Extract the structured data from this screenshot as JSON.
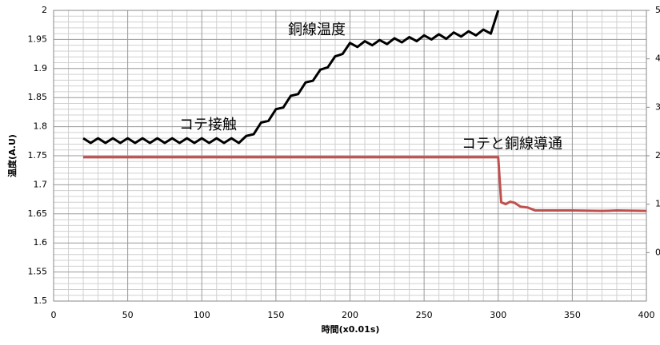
{
  "chart_data": {
    "type": "line",
    "x_label": "時間(x0.01s)",
    "y_label": "温度(A.U)",
    "annotations": [
      "銅線温度",
      "コテ接触",
      "コテと銅線導通"
    ],
    "xlim": [
      0,
      400
    ],
    "xticks": [
      0,
      50,
      100,
      150,
      200,
      250,
      300,
      350,
      400
    ],
    "ylim": [
      1.5,
      2
    ],
    "yticks": [
      1.5,
      1.55,
      1.6,
      1.65,
      1.7,
      1.75,
      1.8,
      1.85,
      1.9,
      1.95,
      2
    ],
    "y2lim": [
      -1,
      5
    ],
    "y2ticks": [
      0,
      1,
      2,
      3,
      4,
      5
    ],
    "grid": true,
    "series": [
      {
        "color": "#000000",
        "x": [
          20,
          25,
          30,
          35,
          40,
          45,
          50,
          55,
          60,
          65,
          70,
          75,
          80,
          85,
          90,
          95,
          100,
          105,
          110,
          115,
          120,
          125,
          130,
          135,
          140,
          145,
          150,
          155,
          160,
          165,
          170,
          175,
          180,
          185,
          190,
          195,
          200,
          205,
          210,
          215,
          220,
          225,
          230,
          235,
          240,
          245,
          250,
          255,
          260,
          265,
          270,
          275,
          280,
          285,
          290,
          295,
          300
        ],
        "values": [
          1.78,
          1.772,
          1.78,
          1.772,
          1.78,
          1.772,
          1.78,
          1.772,
          1.78,
          1.772,
          1.78,
          1.772,
          1.78,
          1.772,
          1.78,
          1.772,
          1.78,
          1.772,
          1.78,
          1.772,
          1.78,
          1.772,
          1.784,
          1.787,
          1.807,
          1.81,
          1.83,
          1.833,
          1.853,
          1.856,
          1.876,
          1.879,
          1.898,
          1.902,
          1.921,
          1.925,
          1.944,
          1.937,
          1.947,
          1.94,
          1.949,
          1.942,
          1.952,
          1.945,
          1.954,
          1.947,
          1.957,
          1.95,
          1.959,
          1.951,
          1.962,
          1.955,
          1.964,
          1.957,
          1.967,
          1.96,
          2.0
        ]
      },
      {
        "color": "#c0504d",
        "axis": "y2",
        "x": [
          20,
          300,
          302,
          305,
          308,
          311,
          315,
          320,
          325,
          350,
          370,
          380,
          400
        ],
        "values": [
          1.97,
          1.97,
          1.04,
          1.0,
          1.05,
          1.03,
          0.95,
          0.93,
          0.87,
          0.87,
          0.86,
          0.87,
          0.86
        ]
      }
    ]
  }
}
